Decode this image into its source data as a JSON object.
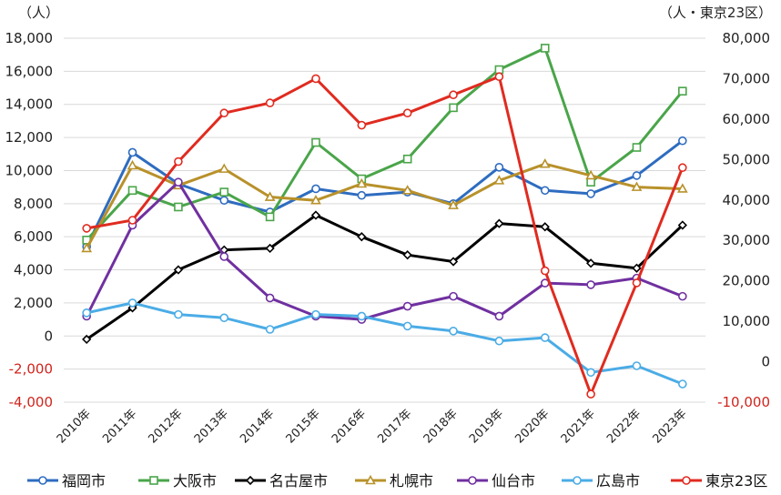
{
  "chart_data": {
    "type": "line",
    "left_axis_unit": "（人）",
    "right_axis_unit": "（人・東京23区）",
    "categories": [
      "2010年",
      "2011年",
      "2012年",
      "2013年",
      "2014年",
      "2015年",
      "2016年",
      "2017年",
      "2018年",
      "2019年",
      "2020年",
      "2021年",
      "2022年",
      "2023年"
    ],
    "ylim_left": [
      -4000,
      18000
    ],
    "ylim_right": [
      -10000,
      80000
    ],
    "yticks_left": [
      "18,000",
      "16,000",
      "14,000",
      "12,000",
      "10,000",
      "8,000",
      "6,000",
      "4,000",
      "2,000",
      "0",
      "-2,000",
      "-4,000"
    ],
    "yticks_left_values": [
      18000,
      16000,
      14000,
      12000,
      10000,
      8000,
      6000,
      4000,
      2000,
      0,
      -2000,
      -4000
    ],
    "yticks_right": [
      "80,000",
      "70,000",
      "60,000",
      "50,000",
      "40,000",
      "30,000",
      "20,000",
      "10,000",
      "0",
      "-10,000"
    ],
    "yticks_right_values": [
      80000,
      70000,
      60000,
      50000,
      40000,
      30000,
      20000,
      10000,
      0,
      -10000
    ],
    "grid": true,
    "legend_position": "bottom",
    "series": [
      {
        "name": "福岡市",
        "axis": "left",
        "color": "#2e6cc0",
        "marker": "circle",
        "values": [
          5400,
          11100,
          9200,
          8200,
          7500,
          8900,
          8500,
          8700,
          8000,
          10200,
          8800,
          8600,
          9700,
          11800
        ]
      },
      {
        "name": "大阪市",
        "axis": "left",
        "color": "#4aa54a",
        "marker": "square",
        "values": [
          5800,
          8800,
          7800,
          8700,
          7200,
          11700,
          9500,
          10700,
          13800,
          16100,
          17400,
          9300,
          11400,
          14800
        ]
      },
      {
        "name": "名古屋市",
        "axis": "left",
        "color": "#000000",
        "marker": "diamond",
        "values": [
          -200,
          1700,
          4000,
          5200,
          5300,
          7300,
          6000,
          4900,
          4500,
          6800,
          6600,
          4400,
          4100,
          6700
        ]
      },
      {
        "name": "札幌市",
        "axis": "left",
        "color": "#b8912a",
        "marker": "triangle",
        "values": [
          5300,
          10300,
          9100,
          10100,
          8400,
          8200,
          9200,
          8800,
          7900,
          9400,
          10400,
          9700,
          9000,
          8900
        ]
      },
      {
        "name": "仙台市",
        "axis": "left",
        "color": "#7030a0",
        "marker": "circle",
        "values": [
          1200,
          6700,
          9300,
          4800,
          2300,
          1200,
          1000,
          1800,
          2400,
          1200,
          3200,
          3100,
          3500,
          2400
        ]
      },
      {
        "name": "広島市",
        "axis": "left",
        "color": "#4bace6",
        "marker": "circle",
        "values": [
          1400,
          2000,
          1300,
          1100,
          400,
          1300,
          1200,
          600,
          300,
          -300,
          -100,
          -2200,
          -1800,
          -2900
        ]
      },
      {
        "name": "東京23区",
        "axis": "right",
        "color": "#e02b20",
        "marker": "circle",
        "values": [
          33000,
          35000,
          49500,
          61500,
          64000,
          70000,
          58500,
          61500,
          66000,
          70500,
          22500,
          -8000,
          19500,
          48000
        ]
      }
    ]
  }
}
